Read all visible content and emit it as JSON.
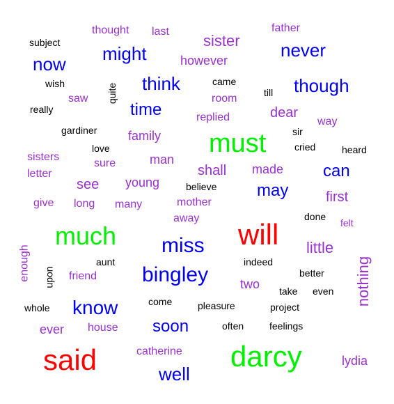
{
  "palette": {
    "black": "#000000",
    "purple": "#9932cc",
    "blue": "#0000ee",
    "green": "#00ee00",
    "red": "#ff0000"
  },
  "words": [
    {
      "text": "subject",
      "color": "black"
    },
    {
      "text": "thought",
      "color": "purple"
    },
    {
      "text": "last",
      "color": "purple"
    },
    {
      "text": "sister",
      "color": "purple"
    },
    {
      "text": "father",
      "color": "purple"
    },
    {
      "text": "now",
      "color": "blue"
    },
    {
      "text": "might",
      "color": "blue"
    },
    {
      "text": "however",
      "color": "purple"
    },
    {
      "text": "never",
      "color": "blue"
    },
    {
      "text": "wish",
      "color": "black"
    },
    {
      "text": "quite",
      "color": "black",
      "vertical": true
    },
    {
      "text": "think",
      "color": "blue"
    },
    {
      "text": "came",
      "color": "black"
    },
    {
      "text": "room",
      "color": "purple"
    },
    {
      "text": "till",
      "color": "black"
    },
    {
      "text": "though",
      "color": "blue"
    },
    {
      "text": "saw",
      "color": "purple"
    },
    {
      "text": "really",
      "color": "black"
    },
    {
      "text": "time",
      "color": "blue"
    },
    {
      "text": "replied",
      "color": "purple"
    },
    {
      "text": "dear",
      "color": "purple"
    },
    {
      "text": "way",
      "color": "purple"
    },
    {
      "text": "gardiner",
      "color": "black"
    },
    {
      "text": "family",
      "color": "purple"
    },
    {
      "text": "sir",
      "color": "black"
    },
    {
      "text": "must",
      "color": "green"
    },
    {
      "text": "cried",
      "color": "black"
    },
    {
      "text": "heard",
      "color": "black"
    },
    {
      "text": "love",
      "color": "black"
    },
    {
      "text": "sisters",
      "color": "purple"
    },
    {
      "text": "sure",
      "color": "purple"
    },
    {
      "text": "man",
      "color": "purple"
    },
    {
      "text": "shall",
      "color": "purple"
    },
    {
      "text": "made",
      "color": "purple"
    },
    {
      "text": "can",
      "color": "blue"
    },
    {
      "text": "letter",
      "color": "purple"
    },
    {
      "text": "see",
      "color": "purple"
    },
    {
      "text": "young",
      "color": "purple"
    },
    {
      "text": "believe",
      "color": "black"
    },
    {
      "text": "may",
      "color": "blue"
    },
    {
      "text": "first",
      "color": "purple"
    },
    {
      "text": "give",
      "color": "purple"
    },
    {
      "text": "long",
      "color": "purple"
    },
    {
      "text": "many",
      "color": "purple"
    },
    {
      "text": "mother",
      "color": "purple"
    },
    {
      "text": "away",
      "color": "purple"
    },
    {
      "text": "done",
      "color": "black"
    },
    {
      "text": "felt",
      "color": "purple"
    },
    {
      "text": "much",
      "color": "green"
    },
    {
      "text": "will",
      "color": "red"
    },
    {
      "text": "miss",
      "color": "blue"
    },
    {
      "text": "little",
      "color": "purple"
    },
    {
      "text": "enough",
      "color": "purple",
      "vertical": true
    },
    {
      "text": "aunt",
      "color": "black"
    },
    {
      "text": "indeed",
      "color": "black"
    },
    {
      "text": "upon",
      "color": "black",
      "vertical": true
    },
    {
      "text": "friend",
      "color": "purple"
    },
    {
      "text": "bingley",
      "color": "blue"
    },
    {
      "text": "better",
      "color": "black"
    },
    {
      "text": "nothing",
      "color": "purple",
      "vertical": true
    },
    {
      "text": "two",
      "color": "purple"
    },
    {
      "text": "take",
      "color": "black"
    },
    {
      "text": "even",
      "color": "black"
    },
    {
      "text": "whole",
      "color": "black"
    },
    {
      "text": "know",
      "color": "blue"
    },
    {
      "text": "come",
      "color": "black"
    },
    {
      "text": "pleasure",
      "color": "black"
    },
    {
      "text": "project",
      "color": "black"
    },
    {
      "text": "ever",
      "color": "purple"
    },
    {
      "text": "house",
      "color": "purple"
    },
    {
      "text": "soon",
      "color": "blue"
    },
    {
      "text": "often",
      "color": "black"
    },
    {
      "text": "feelings",
      "color": "black"
    },
    {
      "text": "said",
      "color": "red"
    },
    {
      "text": "catherine",
      "color": "purple"
    },
    {
      "text": "darcy",
      "color": "green"
    },
    {
      "text": "lydia",
      "color": "purple"
    },
    {
      "text": "well",
      "color": "blue"
    }
  ]
}
